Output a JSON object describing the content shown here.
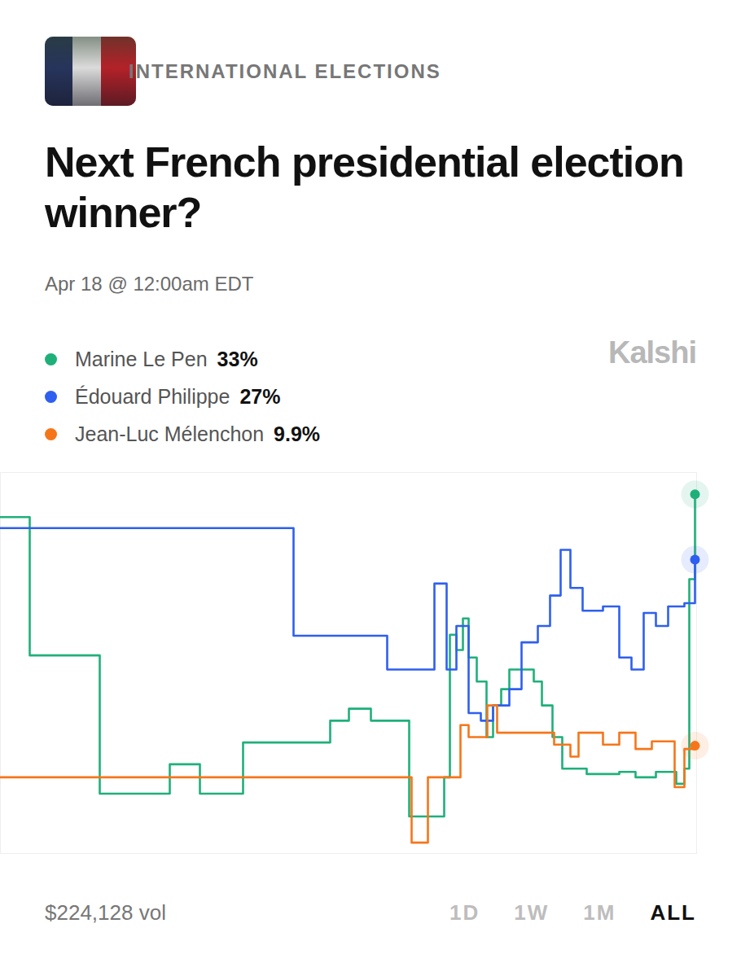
{
  "chart_data": {
    "type": "line",
    "category": "INTERNATIONAL ELECTIONS",
    "title": "Next French presidential election winner?",
    "subtitle": "Apr 18 @ 12:00am EDT",
    "brand": "Kalshi",
    "volume": 224128,
    "volume_label": "$224,128 vol",
    "ranges": [
      "1D",
      "1W",
      "1M",
      "ALL"
    ],
    "selected_range": "ALL",
    "line_style": "step",
    "tick_labels": false,
    "grid": false,
    "legend": "top left",
    "xlim": [
      0,
      855
    ],
    "ylim": [
      0,
      35
    ],
    "xticks": [],
    "yticks": [],
    "series": [
      {
        "name": "Marine Le Pen",
        "color": "#1fb07a",
        "current": 33,
        "current_label": "33%",
        "x": [
          0,
          36,
          122,
          208,
          245,
          298,
          405,
          428,
          455,
          502,
          545,
          552,
          560,
          568,
          575,
          585,
          597,
          605,
          615,
          625,
          640,
          655,
          665,
          678,
          690,
          720,
          760,
          780,
          805,
          830,
          840,
          846,
          853
        ],
        "values": [
          30.9,
          18.2,
          5.5,
          8.2,
          5.5,
          10.2,
          12.2,
          13.3,
          12.2,
          3.4,
          7.0,
          20.1,
          18.7,
          21.6,
          18.0,
          15.8,
          10.7,
          13.6,
          15.1,
          16.9,
          16.9,
          15.8,
          13.6,
          10.7,
          7.8,
          7.3,
          7.5,
          7.0,
          7.5,
          6.4,
          7.8,
          25.2,
          33
        ]
      },
      {
        "name": "Édouard Philippe",
        "color": "#2f5ff0",
        "current": 27,
        "current_label": "27%",
        "x": [
          0,
          360,
          475,
          533,
          548,
          560,
          575,
          590,
          605,
          625,
          640,
          660,
          675,
          688,
          700,
          715,
          740,
          760,
          775,
          790,
          805,
          820,
          840,
          853
        ],
        "values": [
          29.9,
          20.0,
          16.9,
          24.8,
          16.9,
          20.9,
          12.9,
          12.2,
          13.6,
          15.1,
          19.4,
          20.9,
          23.7,
          27.9,
          24.4,
          22.3,
          22.7,
          18.0,
          16.9,
          22.1,
          20.9,
          22.7,
          23.0,
          27
        ]
      },
      {
        "name": "Jean-Luc Mélenchon",
        "color": "#f5761a",
        "current": 9.9,
        "current_label": "9.9%",
        "x": [
          0,
          505,
          525,
          565,
          575,
          598,
          610,
          640,
          680,
          700,
          710,
          740,
          760,
          780,
          800,
          828,
          840,
          853
        ],
        "values": [
          7.0,
          1.0,
          7.0,
          11.8,
          10.7,
          13.6,
          11.1,
          11.1,
          10.0,
          8.9,
          11.1,
          10.0,
          11.1,
          9.6,
          10.3,
          6.1,
          9.6,
          9.9
        ]
      }
    ]
  }
}
